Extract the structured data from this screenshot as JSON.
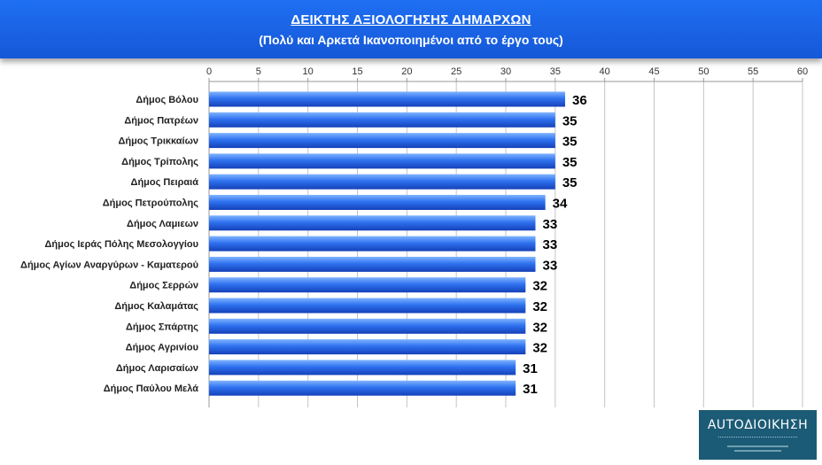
{
  "header": {
    "title": "ΔΕΙΚΤΗΣ ΑΞΙΟΛΟΓΗΣΗΣ ΔΗΜΑΡΧΩΝ",
    "subtitle": "(Πολύ και Αρκετά Ικανοποιημένοι από το έργο τους)"
  },
  "logo": {
    "text": "ΑUΤΟΔΙΟΙΚΗΣΗ"
  },
  "colors": {
    "header": "#1a63e6",
    "bar_light": "#5fa0ff",
    "bar_dark": "#1441b8",
    "grid": "#bfbfbf"
  },
  "chart_data": {
    "type": "bar",
    "orientation": "horizontal",
    "categories": [
      "Δήμος Βόλου",
      "Δήμος Πατρέων",
      "Δήμος Τρικκαίων",
      "Δήμος Τρίπολης",
      "Δήμος Πειραιά",
      "Δήμος Πετρούπολης",
      "Δήμος Λαμιεων",
      "Δήμος Ιεράς Πόλης Μεσολογγίου",
      "Δήμος Αγίων Αναργύρων - Καματερού",
      "Δήμος Σερρών",
      "Δήμος Καλαμάτας",
      "Δήμος Σπάρτης",
      "Δήμος Αγρινίου",
      "Δήμος Λαρισαίων",
      "Δήμος Παύλου Μελά"
    ],
    "values": [
      36,
      35,
      35,
      35,
      35,
      34,
      33,
      33,
      33,
      32,
      32,
      32,
      32,
      31,
      31
    ],
    "data_labels": [
      "36",
      "35",
      "35",
      "35",
      "35",
      "34",
      "33",
      "33",
      "33",
      "32",
      "32",
      "32",
      "32",
      "31",
      "31"
    ],
    "x_ticks": [
      "0",
      "5",
      "10",
      "15",
      "20",
      "25",
      "30",
      "35",
      "40",
      "45",
      "50",
      "55",
      "60"
    ],
    "xlim": [
      0,
      60
    ],
    "axis_position": "top",
    "grid": true,
    "legend": "none"
  }
}
